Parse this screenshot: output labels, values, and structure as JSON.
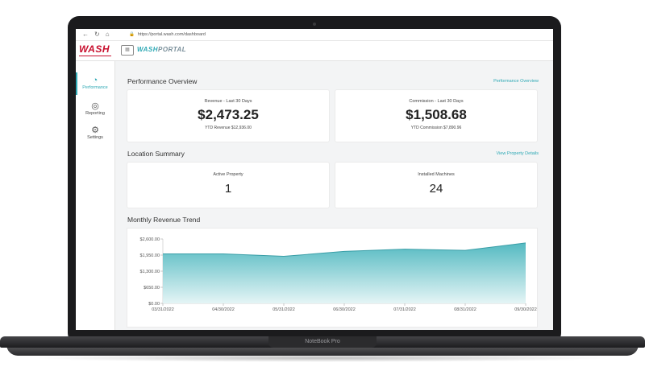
{
  "browser": {
    "url": "https://portal.wash.com/dashboard",
    "icons": [
      "back-icon",
      "reload-icon",
      "home-icon",
      "lock-icon"
    ]
  },
  "header": {
    "logo": "WASH",
    "portal_prefix": "WASH",
    "portal_suffix": "PORTAL"
  },
  "sidebar": {
    "items": [
      {
        "label": "Performance",
        "icon": "gauge-icon",
        "active": true
      },
      {
        "label": "Reporting",
        "icon": "chart-globe-icon",
        "active": false
      },
      {
        "label": "Settings",
        "icon": "gear-icon",
        "active": false
      }
    ]
  },
  "performance": {
    "title": "Performance Overview",
    "link": "Performance Overview",
    "revenue": {
      "label": "Revenue - Last 30 Days",
      "value": "$2,473.25",
      "sub": "YTD Revenue $12,936.00"
    },
    "commission": {
      "label": "Commission - Last 30 Days",
      "value": "$1,508.68",
      "sub": "YTD Commission $7,890.96"
    }
  },
  "location": {
    "title": "Location Summary",
    "link": "View Property Details",
    "active": {
      "label": "Active Property",
      "value": "1"
    },
    "machines": {
      "label": "Installed Machines",
      "value": "24"
    }
  },
  "trend": {
    "title": "Monthly Revenue Trend"
  },
  "chart_data": {
    "type": "area",
    "x": [
      "03/31/2022",
      "04/30/2022",
      "05/31/2022",
      "06/30/2022",
      "07/31/2022",
      "08/31/2022",
      "09/30/2022"
    ],
    "values": [
      2000,
      2000,
      1900,
      2100,
      2190,
      2140,
      2440
    ],
    "yticks": [
      "$0.00",
      "$650.00",
      "$1,300.00",
      "$1,950.00",
      "$2,600.00"
    ],
    "ylim": [
      0,
      2600
    ],
    "colors": {
      "top": "#4bb6be",
      "bottom": "#e3f4f5",
      "line": "#3a9ea7"
    }
  },
  "laptop": {
    "brand": "NoteBook Pro"
  }
}
